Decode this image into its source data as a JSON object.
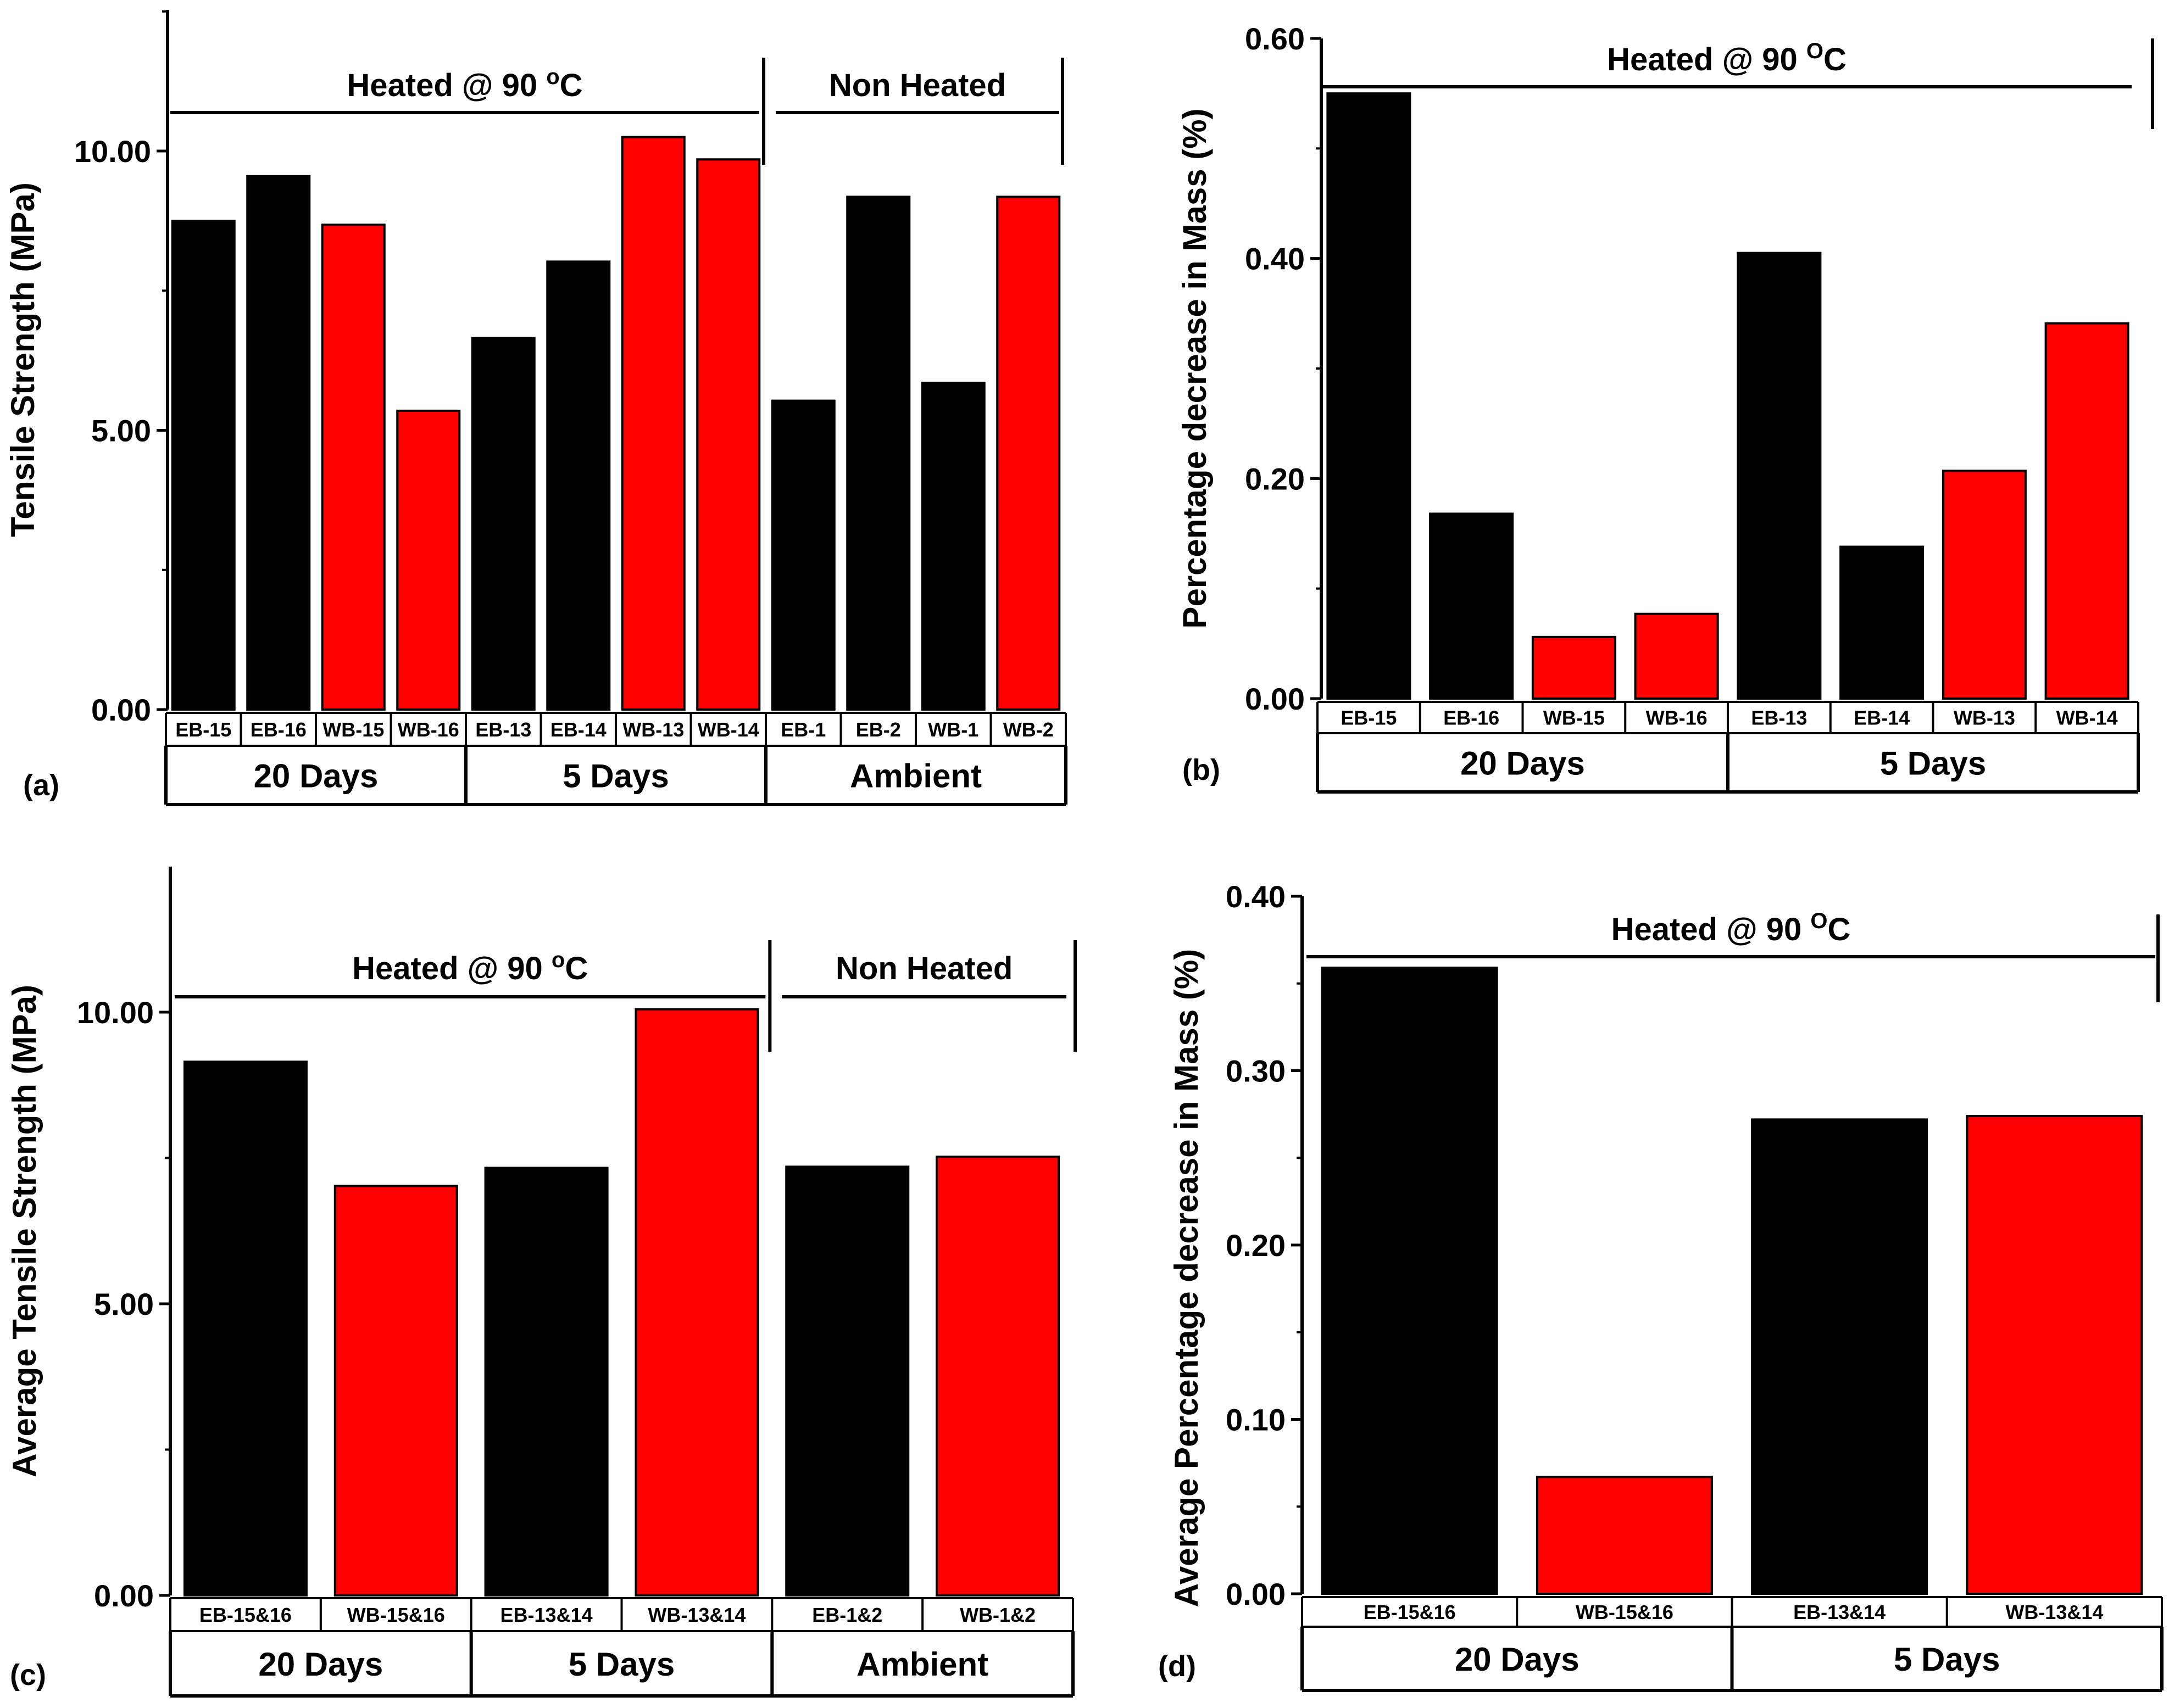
{
  "colors": {
    "black_bar": "#000000",
    "red_bar": "#ff0000",
    "line": "#000000"
  },
  "chart_data": [
    {
      "panel": "(a)",
      "type": "bar",
      "ylabel": "Tensile Strength (MPa)",
      "ylim": [
        0,
        12.5
      ],
      "yticks": [
        {
          "value": 0,
          "label": "0.00"
        },
        {
          "value": 5,
          "label": "5.00"
        },
        {
          "value": 10,
          "label": "10.00"
        }
      ],
      "minor_tick_step": 2.5,
      "bars": [
        {
          "label": "EB-15",
          "value": 8.75,
          "color": "#000000"
        },
        {
          "label": "EB-16",
          "value": 9.55,
          "color": "#000000"
        },
        {
          "label": "WB-15",
          "value": 8.68,
          "color": "#ff0000"
        },
        {
          "label": "WB-16",
          "value": 5.35,
          "color": "#ff0000"
        },
        {
          "label": "EB-13",
          "value": 6.65,
          "color": "#000000"
        },
        {
          "label": "EB-14",
          "value": 8.02,
          "color": "#000000"
        },
        {
          "label": "WB-13",
          "value": 10.25,
          "color": "#ff0000"
        },
        {
          "label": "WB-14",
          "value": 9.85,
          "color": "#ff0000"
        },
        {
          "label": "EB-1",
          "value": 5.53,
          "color": "#000000"
        },
        {
          "label": "EB-2",
          "value": 9.18,
          "color": "#000000"
        },
        {
          "label": "WB-1",
          "value": 5.85,
          "color": "#000000"
        },
        {
          "label": "WB-2",
          "value": 9.18,
          "color": "#ff0000"
        }
      ],
      "groups": [
        {
          "label": "20 Days",
          "count": 4
        },
        {
          "label": "5 Days",
          "count": 4
        },
        {
          "label": "Ambient",
          "count": 4
        }
      ],
      "annotations": [
        {
          "text": "Heated @ 90 ",
          "sup": "o",
          "after": "C",
          "from": 0,
          "to": 8
        },
        {
          "text": "Non Heated",
          "sup": "",
          "after": "",
          "from": 8,
          "to": 12
        }
      ]
    },
    {
      "panel": "(b)",
      "type": "bar",
      "ylabel": "Percentage decrease in Mass (%)",
      "ylim": [
        0,
        0.6
      ],
      "yticks": [
        {
          "value": 0,
          "label": "0.00"
        },
        {
          "value": 0.2,
          "label": "0.20"
        },
        {
          "value": 0.4,
          "label": "0.40"
        },
        {
          "value": 0.6,
          "label": "0.60"
        }
      ],
      "minor_tick_step": 0.1,
      "bars": [
        {
          "label": "EB-15",
          "value": 0.55,
          "color": "#000000"
        },
        {
          "label": "EB-16",
          "value": 0.168,
          "color": "#000000"
        },
        {
          "label": "WB-15",
          "value": 0.056,
          "color": "#ff0000"
        },
        {
          "label": "WB-16",
          "value": 0.077,
          "color": "#ff0000"
        },
        {
          "label": "EB-13",
          "value": 0.405,
          "color": "#000000"
        },
        {
          "label": "EB-14",
          "value": 0.138,
          "color": "#000000"
        },
        {
          "label": "WB-13",
          "value": 0.207,
          "color": "#ff0000"
        },
        {
          "label": "WB-14",
          "value": 0.341,
          "color": "#ff0000"
        }
      ],
      "groups": [
        {
          "label": "20 Days",
          "count": 4
        },
        {
          "label": "5 Days",
          "count": 4
        }
      ],
      "annotations": [
        {
          "text": "Heated @ 90 ",
          "sup": "O",
          "after": "C",
          "from": 0,
          "to": 8
        }
      ]
    },
    {
      "panel": "(c)",
      "type": "bar",
      "ylabel": "Average Tensile Strength (MPa)",
      "ylim": [
        0,
        12.5
      ],
      "yticks": [
        {
          "value": 0,
          "label": "0.00"
        },
        {
          "value": 5,
          "label": "5.00"
        },
        {
          "value": 10,
          "label": "10.00"
        }
      ],
      "minor_tick_step": 2.5,
      "bars": [
        {
          "label": "EB-15&16",
          "value": 9.15,
          "color": "#000000"
        },
        {
          "label": "WB-15&16",
          "value": 7.02,
          "color": "#ff0000"
        },
        {
          "label": "EB-13&14",
          "value": 7.33,
          "color": "#000000"
        },
        {
          "label": "WB-13&14",
          "value": 10.05,
          "color": "#ff0000"
        },
        {
          "label": "EB-1&2",
          "value": 7.35,
          "color": "#000000"
        },
        {
          "label": "WB-1&2",
          "value": 7.52,
          "color": "#ff0000"
        }
      ],
      "groups": [
        {
          "label": "20 Days",
          "count": 2
        },
        {
          "label": "5 Days",
          "count": 2
        },
        {
          "label": "Ambient",
          "count": 2
        }
      ],
      "annotations": [
        {
          "text": "Heated @ 90 ",
          "sup": "o",
          "after": "C",
          "from": 0,
          "to": 4
        },
        {
          "text": "Non Heated",
          "sup": "",
          "after": "",
          "from": 4,
          "to": 6
        }
      ]
    },
    {
      "panel": "(d)",
      "type": "bar",
      "ylabel": "Average Percentage decrease in Mass (%)",
      "ylim": [
        0,
        0.4
      ],
      "yticks": [
        {
          "value": 0,
          "label": "0.00"
        },
        {
          "value": 0.1,
          "label": "0.10"
        },
        {
          "value": 0.2,
          "label": "0.20"
        },
        {
          "value": 0.3,
          "label": "0.30"
        },
        {
          "value": 0.4,
          "label": "0.40"
        }
      ],
      "minor_tick_step": 0.05,
      "bars": [
        {
          "label": "EB-15&16",
          "value": 0.359,
          "color": "#000000"
        },
        {
          "label": "WB-15&16",
          "value": 0.067,
          "color": "#ff0000"
        },
        {
          "label": "EB-13&14",
          "value": 0.272,
          "color": "#000000"
        },
        {
          "label": "WB-13&14",
          "value": 0.274,
          "color": "#ff0000"
        }
      ],
      "groups": [
        {
          "label": "20 Days",
          "count": 2
        },
        {
          "label": "5 Days",
          "count": 2
        }
      ],
      "annotations": [
        {
          "text": "Heated @ 90 ",
          "sup": "O",
          "after": "C",
          "from": 0,
          "to": 4
        }
      ]
    }
  ]
}
